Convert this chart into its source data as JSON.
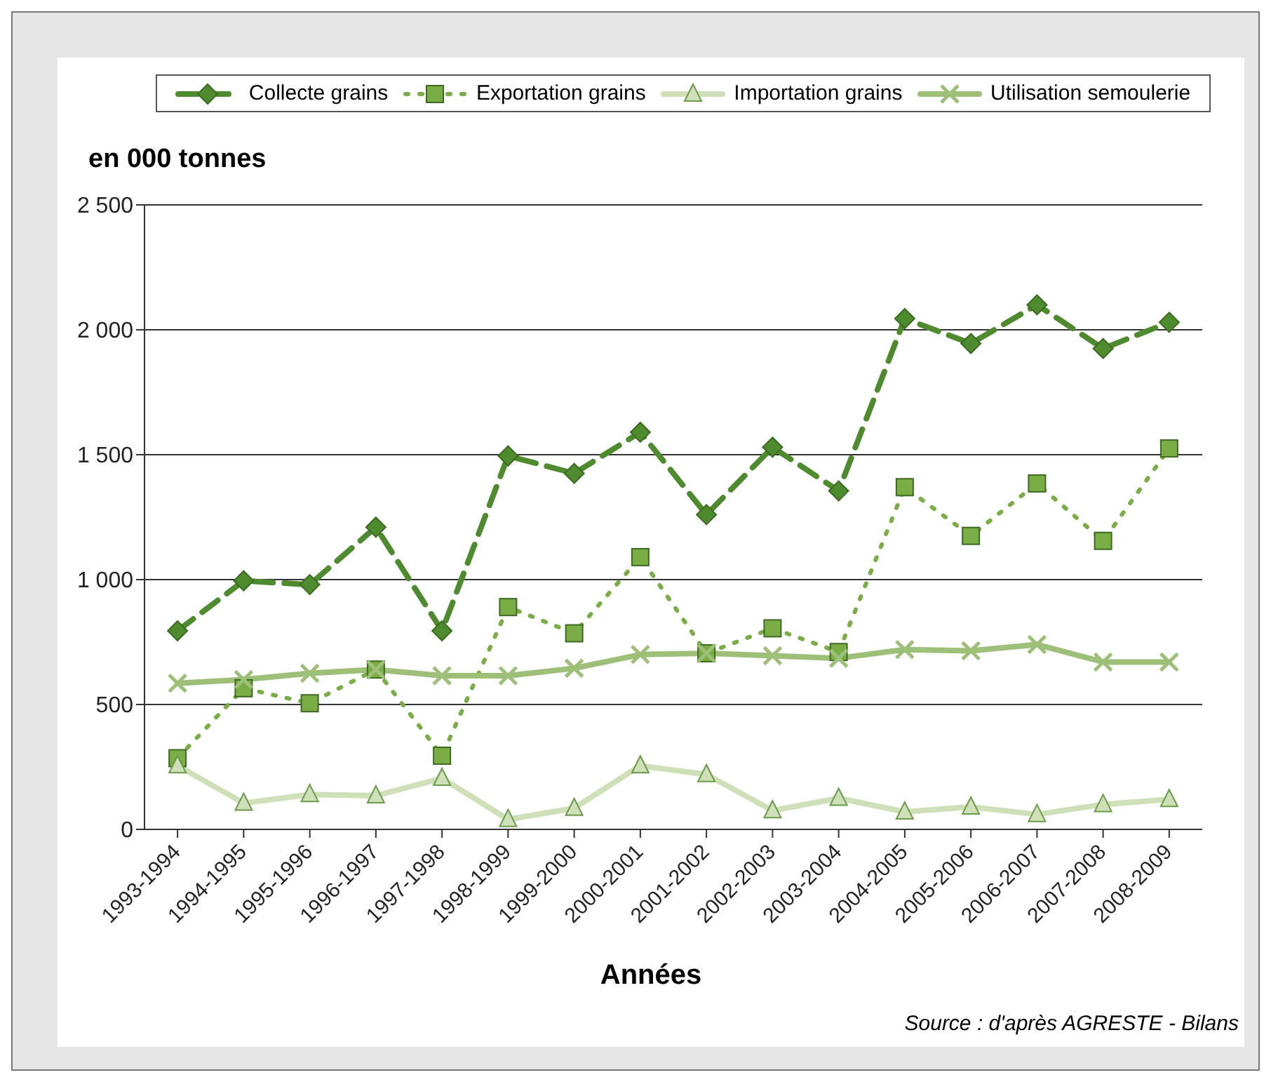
{
  "chart_data": {
    "type": "line",
    "ylabel": "en 000 tonnes",
    "xlabel": "Années",
    "categories": [
      "1993-1994",
      "1994-1995",
      "1995-1996",
      "1996-1997",
      "1997-1998",
      "1998-1999",
      "1999-2000",
      "2000-2001",
      "2001-2002",
      "2002-2003",
      "2003-2004",
      "2004-2005",
      "2005-2006",
      "2006-2007",
      "2007-2008",
      "2008-2009"
    ],
    "series": [
      {
        "name": "Collecte grains",
        "color": "#4e8a2e",
        "marker": "diamond",
        "line_style": "dashed",
        "values": [
          795,
          995,
          980,
          1210,
          795,
          1495,
          1425,
          1590,
          1260,
          1530,
          1355,
          2045,
          1945,
          2100,
          1925,
          2030
        ]
      },
      {
        "name": "Exportation grains",
        "color": "#7aad45",
        "marker": "square",
        "line_style": "dotted",
        "values": [
          285,
          565,
          505,
          640,
          295,
          890,
          785,
          1090,
          705,
          805,
          710,
          1370,
          1175,
          1385,
          1155,
          1525
        ]
      },
      {
        "name": "Importation grains",
        "color": "#cfe0b8",
        "marker": "triangle",
        "line_style": "solid",
        "values": [
          255,
          105,
          140,
          135,
          205,
          40,
          85,
          255,
          220,
          75,
          125,
          70,
          90,
          60,
          100,
          120
        ]
      },
      {
        "name": "Utilisation semoulerie",
        "color": "#9dbf78",
        "marker": "cross",
        "line_style": "solid",
        "values": [
          585,
          600,
          625,
          640,
          615,
          615,
          645,
          700,
          705,
          695,
          685,
          720,
          715,
          740,
          670,
          670
        ]
      }
    ],
    "ylim": [
      0,
      2500
    ],
    "yticks": [
      0,
      500,
      {
        "value": 1000,
        "label": "1 000"
      },
      {
        "value": 1500,
        "label": "1 500"
      },
      {
        "value": 2000,
        "label": "2 000"
      },
      {
        "value": 2500,
        "label": "2 500"
      }
    ],
    "grid": "y",
    "legend": "top",
    "annotations": [
      "Source : d'après AGRESTE - Bilans"
    ]
  }
}
